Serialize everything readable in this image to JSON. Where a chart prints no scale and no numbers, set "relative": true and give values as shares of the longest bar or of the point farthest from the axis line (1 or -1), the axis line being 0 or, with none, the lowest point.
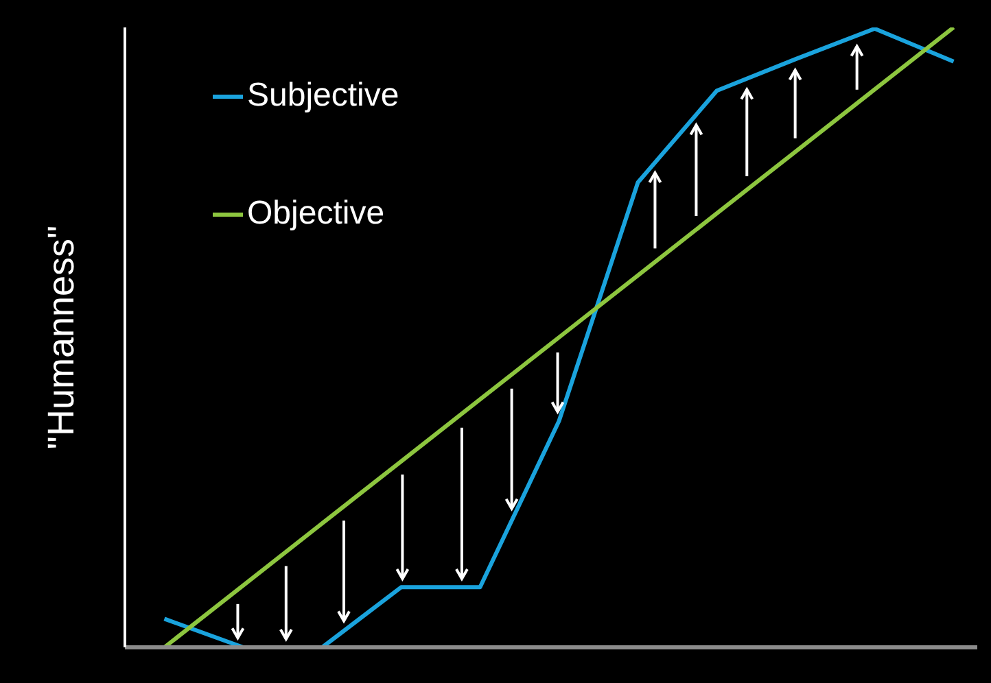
{
  "chart_data": {
    "type": "line",
    "relative": true,
    "ylabel": "\"Humanness\"",
    "legend": "top left",
    "marker": "none",
    "line_style": "solid",
    "categories": [
      null,
      null,
      null,
      null,
      null,
      null,
      null,
      null,
      null,
      null,
      null
    ],
    "series": [
      {
        "name": "Subjective",
        "color": "#1aa3dd",
        "values": [
          0.046,
          0,
          0,
          0.097,
          0.097,
          0.365,
          0.75,
          0.898,
          0.949,
          0.998,
          0.945
        ]
      },
      {
        "name": "Objective",
        "color": "#8dc63f",
        "values": [
          0,
          0.1,
          0.2,
          0.3,
          0.4,
          0.5,
          0.6,
          0.7,
          0.8,
          0.9,
          1.0
        ]
      }
    ]
  }
}
